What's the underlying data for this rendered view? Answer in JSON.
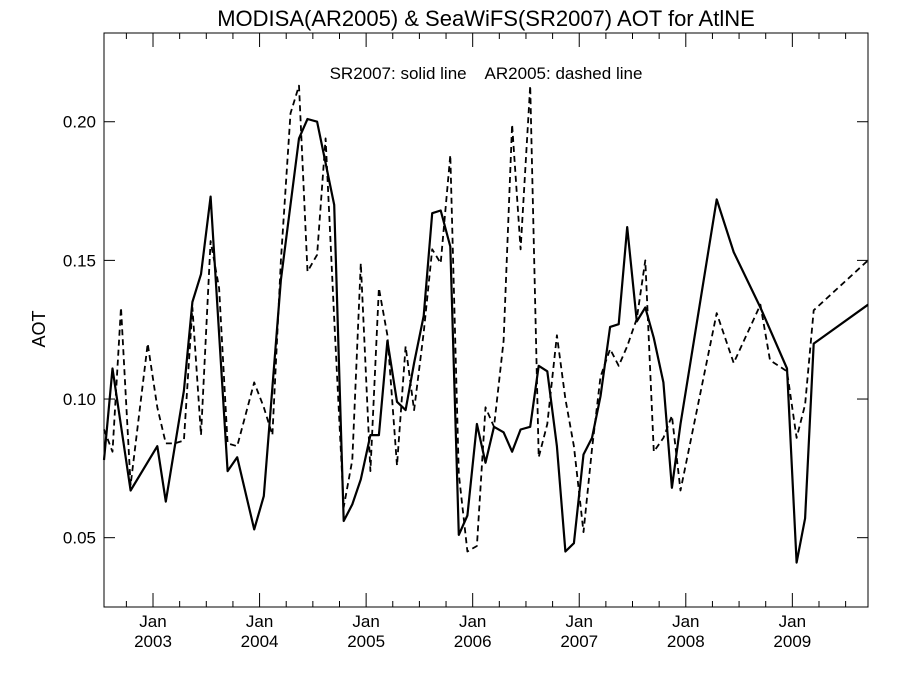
{
  "chart_data": {
    "type": "line",
    "title": "MODISA(AR2005) & SeaWiFS(SR2007)  AOT for AtlNE",
    "ylabel": "AOT",
    "xlabel": "",
    "annotation": "SR2007: solid line    AR2005: dashed line",
    "xlim": [
      2002.54,
      2009.71
    ],
    "ylim": [
      0.025,
      0.232
    ],
    "yticks": [
      0.05,
      0.1,
      0.15,
      0.2
    ],
    "ytick_labels": [
      "0.05",
      "0.10",
      "0.15",
      "0.20"
    ],
    "xticks": [
      {
        "value": 2003.0,
        "month": "Jan",
        "year": "2003"
      },
      {
        "value": 2004.0,
        "month": "Jan",
        "year": "2004"
      },
      {
        "value": 2005.0,
        "month": "Jan",
        "year": "2005"
      },
      {
        "value": 2006.0,
        "month": "Jan",
        "year": "2006"
      },
      {
        "value": 2007.0,
        "month": "Jan",
        "year": "2007"
      },
      {
        "value": 2008.0,
        "month": "Jan",
        "year": "2008"
      },
      {
        "value": 2009.0,
        "month": "Jan",
        "year": "2009"
      }
    ],
    "grid": false,
    "series": [
      {
        "name": "SR2007",
        "style": "solid",
        "color": "#000000",
        "x": [
          2002.54,
          2002.62,
          2002.79,
          2003.04,
          2003.12,
          2003.29,
          2003.37,
          2003.45,
          2003.54,
          2003.7,
          2003.79,
          2003.95,
          2004.04,
          2004.2,
          2004.37,
          2004.45,
          2004.54,
          2004.7,
          2004.79,
          2004.87,
          2004.95,
          2005.04,
          2005.12,
          2005.2,
          2005.29,
          2005.37,
          2005.45,
          2005.54,
          2005.62,
          2005.7,
          2005.79,
          2005.87,
          2005.95,
          2006.04,
          2006.12,
          2006.2,
          2006.29,
          2006.37,
          2006.45,
          2006.54,
          2006.62,
          2006.7,
          2006.79,
          2006.87,
          2006.95,
          2007.04,
          2007.12,
          2007.2,
          2007.29,
          2007.37,
          2007.45,
          2007.54,
          2007.62,
          2007.7,
          2007.79,
          2007.87,
          2007.95,
          2008.29,
          2008.45,
          2008.7,
          2008.95,
          2009.04,
          2009.12,
          2009.2,
          2009.71
        ],
        "y": [
          0.078,
          0.111,
          0.067,
          0.083,
          0.063,
          0.103,
          0.135,
          0.145,
          0.173,
          0.074,
          0.079,
          0.053,
          0.065,
          0.143,
          0.194,
          0.201,
          0.2,
          0.17,
          0.056,
          0.062,
          0.071,
          0.087,
          0.087,
          0.121,
          0.099,
          0.096,
          0.113,
          0.13,
          0.167,
          0.168,
          0.155,
          0.051,
          0.058,
          0.091,
          0.077,
          0.09,
          0.088,
          0.081,
          0.089,
          0.09,
          0.112,
          0.11,
          0.083,
          0.045,
          0.048,
          0.08,
          0.086,
          0.101,
          0.126,
          0.127,
          0.162,
          0.128,
          0.133,
          0.122,
          0.106,
          0.068,
          0.091,
          0.172,
          0.153,
          0.133,
          0.111,
          0.041,
          0.057,
          0.12,
          0.134
        ]
      },
      {
        "name": "AR2005",
        "style": "dashed",
        "color": "#000000",
        "x": [
          2002.54,
          2002.62,
          2002.7,
          2002.79,
          2002.95,
          2003.04,
          2003.12,
          2003.2,
          2003.29,
          2003.37,
          2003.45,
          2003.54,
          2003.62,
          2003.7,
          2003.79,
          2003.95,
          2004.04,
          2004.12,
          2004.2,
          2004.29,
          2004.37,
          2004.45,
          2004.54,
          2004.62,
          2004.7,
          2004.79,
          2004.87,
          2004.95,
          2005.04,
          2005.12,
          2005.2,
          2005.29,
          2005.37,
          2005.45,
          2005.54,
          2005.62,
          2005.7,
          2005.79,
          2005.87,
          2005.95,
          2006.04,
          2006.12,
          2006.2,
          2006.29,
          2006.37,
          2006.45,
          2006.54,
          2006.62,
          2006.7,
          2006.79,
          2006.87,
          2006.95,
          2007.04,
          2007.12,
          2007.2,
          2007.29,
          2007.37,
          2007.45,
          2007.54,
          2007.62,
          2007.7,
          2007.79,
          2007.87,
          2007.95,
          2008.29,
          2008.45,
          2008.7,
          2008.79,
          2008.95,
          2009.04,
          2009.12,
          2009.2,
          2009.71
        ],
        "y": [
          0.089,
          0.081,
          0.133,
          0.069,
          0.12,
          0.097,
          0.084,
          0.084,
          0.085,
          0.133,
          0.087,
          0.157,
          0.14,
          0.084,
          0.083,
          0.106,
          0.097,
          0.087,
          0.15,
          0.203,
          0.213,
          0.146,
          0.152,
          0.194,
          0.129,
          0.061,
          0.078,
          0.149,
          0.074,
          0.14,
          0.123,
          0.076,
          0.119,
          0.096,
          0.124,
          0.154,
          0.149,
          0.188,
          0.073,
          0.045,
          0.047,
          0.097,
          0.09,
          0.121,
          0.199,
          0.154,
          0.213,
          0.079,
          0.091,
          0.123,
          0.1,
          0.083,
          0.052,
          0.082,
          0.108,
          0.118,
          0.112,
          0.119,
          0.129,
          0.15,
          0.081,
          0.086,
          0.094,
          0.067,
          0.131,
          0.113,
          0.134,
          0.114,
          0.11,
          0.086,
          0.098,
          0.132,
          0.15
        ]
      }
    ]
  }
}
